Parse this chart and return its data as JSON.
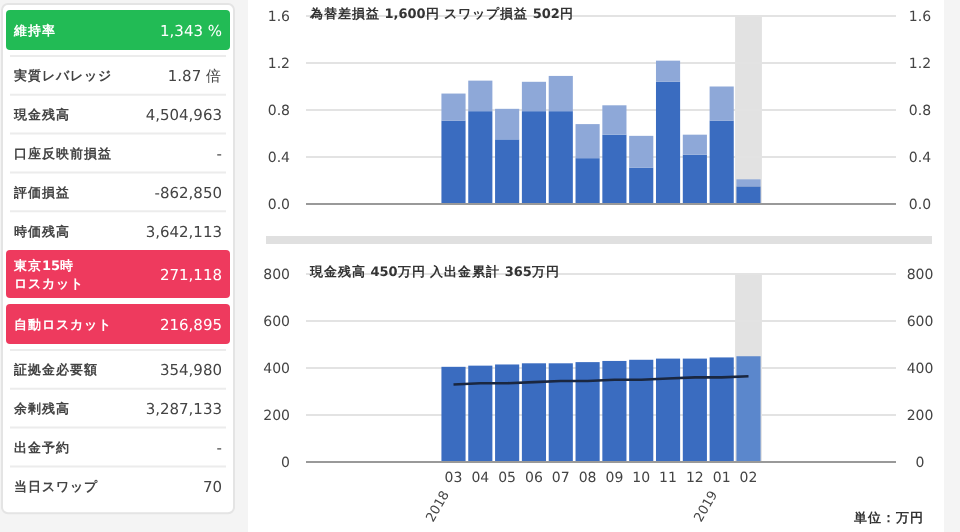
{
  "chart_data": [
    {
      "type": "other",
      "annotations": [
        "維持率",
        "1,343 %",
        "実質レバレッジ",
        "1.87 倍",
        "現金残高",
        "4,504,963",
        "口座反映前損益",
        "-",
        "評価損益",
        "-862,850",
        "時価残高",
        "3,642,113",
        "東京15時ロスカット",
        "271,118",
        "自動ロスカット",
        "216,895",
        "証拠金必要額",
        "354,980",
        "余剰残高",
        "3,287,133",
        "出金予約",
        "-",
        "当日スワップ",
        "70"
      ],
      "colors": [
        "#22bb55",
        "#ffffff",
        "#ffffff",
        "#ffffff",
        "#ffffff",
        "#ffffff",
        "#ee3a5e",
        "#ee3a5e",
        "#ffffff",
        "#ffffff",
        "#ffffff",
        "#ffffff"
      ]
    },
    {
      "type": "bar",
      "title": "為替差損益 1,600円 スワップ損益 502円",
      "stacked": true,
      "grid": "y",
      "tick_labels": "y",
      "categories": [
        null,
        null,
        null,
        null,
        null,
        "03",
        "04",
        "05",
        "06",
        "07",
        "08",
        "09",
        "10",
        "11",
        "12",
        "01",
        "02",
        null,
        null,
        null,
        null,
        null
      ],
      "series": [
        {
          "color": "#3a6cc0",
          "values": [
            null,
            null,
            null,
            null,
            null,
            0.71,
            0.79,
            0.55,
            0.79,
            0.79,
            0.39,
            0.59,
            0.31,
            1.04,
            0.42,
            0.71,
            0.15,
            null,
            null,
            null,
            null,
            null
          ]
        },
        {
          "color": "#8ea8d8",
          "values": [
            null,
            null,
            null,
            null,
            null,
            0.23,
            0.26,
            0.26,
            0.25,
            0.3,
            0.29,
            0.25,
            0.27,
            0.18,
            0.17,
            0.29,
            0.06,
            null,
            null,
            null,
            null,
            null
          ]
        }
      ],
      "ylim": [
        0,
        1.6
      ],
      "yticks": [
        {
          "value": 0,
          "label": "0.0"
        },
        {
          "value": 0.4,
          "label": "0.4"
        },
        {
          "value": 0.8,
          "label": "0.8"
        },
        {
          "value": 1.2,
          "label": "1.2"
        },
        {
          "value": 1.6,
          "label": "1.6"
        }
      ],
      "y2lim": [
        0,
        1.6
      ],
      "y2ticks": [
        {
          "value": 0,
          "label": "0.0"
        },
        {
          "value": 0.4,
          "label": "0.4"
        },
        {
          "value": 0.8,
          "label": "0.8"
        },
        {
          "value": 1.2,
          "label": "1.2"
        },
        {
          "value": 1.6,
          "label": "1.6"
        }
      ],
      "bands": [
        {
          "axis": "x",
          "from": "02",
          "to": "02",
          "color": "#e2e2e2"
        }
      ]
    },
    {
      "type": "bar",
      "title": "現金残高 450万円 入出金累計 365万円",
      "grid": "y",
      "categories": [
        null,
        null,
        null,
        null,
        null,
        "03",
        "04",
        "05",
        "06",
        "07",
        "08",
        "09",
        "10",
        "11",
        "12",
        "01",
        "02",
        null,
        null,
        null,
        null,
        null
      ],
      "series": [
        {
          "colors": [
            null,
            null,
            null,
            null,
            null,
            "#3a6cc0",
            "#3a6cc0",
            "#3a6cc0",
            "#3a6cc0",
            "#3a6cc0",
            "#3a6cc0",
            "#3a6cc0",
            "#3a6cc0",
            "#3a6cc0",
            "#3a6cc0",
            "#3a6cc0",
            "#5b87cc",
            null,
            null,
            null,
            null,
            null
          ],
          "values": [
            null,
            null,
            null,
            null,
            null,
            405,
            410,
            415,
            420,
            420,
            425,
            430,
            435,
            440,
            440,
            445,
            450,
            null,
            null,
            null,
            null,
            null
          ]
        },
        {
          "type": "line",
          "color": "#1a2740",
          "values": [
            null,
            null,
            null,
            null,
            null,
            330,
            335,
            335,
            340,
            345,
            345,
            350,
            350,
            355,
            360,
            360,
            365,
            null,
            null,
            null,
            null,
            null
          ]
        }
      ],
      "ylim": [
        0,
        800
      ],
      "yticks": [
        0,
        200,
        400,
        600,
        800
      ],
      "y2lim": [
        0,
        800
      ],
      "y2ticks": [
        0,
        200,
        400,
        600,
        800
      ],
      "bands": [
        {
          "axis": "x",
          "from": "02",
          "to": "02",
          "color": "#e2e2e2"
        }
      ],
      "annotations": [
        "2018",
        "2019",
        "単位：万円"
      ]
    }
  ]
}
